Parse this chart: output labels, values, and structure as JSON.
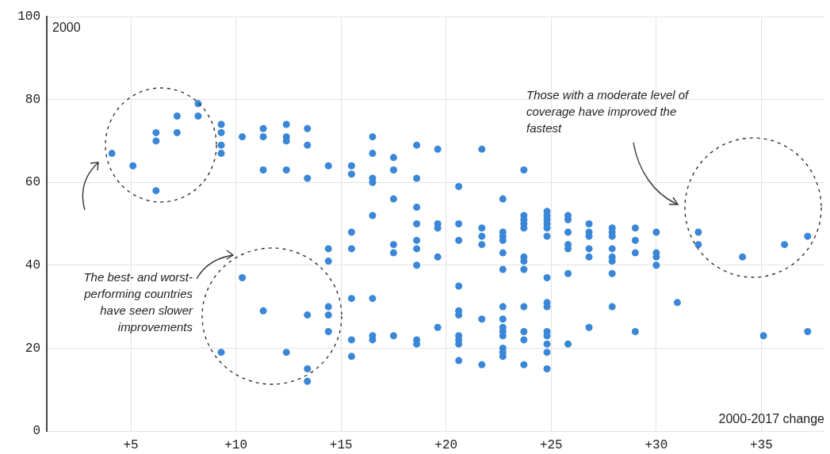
{
  "chart_data": {
    "type": "scatter",
    "xlabel": "2000-2017 change",
    "ylabel": "2000",
    "annotations": [
      "The best- and worst-performing countries have seen slower improvements",
      "Those with a moderate level of coverage have improved the fastest"
    ],
    "series": [
      {
        "color": "#3a87d8",
        "x": [
          4.1,
          5.1,
          6.2,
          6.2,
          6.2,
          7.2,
          7.2,
          8.2,
          8.2,
          9.3,
          9.3,
          9.3,
          9.3,
          9.3,
          10.3,
          10.3,
          11.3,
          11.3,
          11.3,
          11.3,
          12.4,
          12.4,
          12.4,
          12.4,
          12.4,
          13.4,
          13.4,
          13.4,
          13.4,
          13.4,
          13.4,
          14.4,
          14.4,
          14.4,
          14.4,
          14.4,
          14.4,
          15.5,
          15.5,
          15.5,
          15.5,
          15.5,
          15.5,
          15.5,
          16.5,
          16.5,
          16.5,
          16.5,
          16.5,
          16.5,
          16.5,
          16.5,
          17.5,
          17.5,
          17.5,
          17.5,
          17.5,
          17.5,
          18.6,
          18.6,
          18.6,
          18.6,
          18.6,
          18.6,
          18.6,
          18.6,
          18.6,
          19.6,
          19.6,
          19.6,
          19.6,
          19.6,
          20.6,
          20.6,
          20.6,
          20.6,
          20.6,
          20.6,
          20.6,
          20.6,
          20.6,
          20.6,
          21.7,
          21.7,
          21.7,
          21.7,
          21.7,
          21.7,
          22.7,
          22.7,
          22.7,
          22.7,
          22.7,
          22.7,
          22.7,
          22.7,
          22.7,
          22.7,
          22.7,
          22.7,
          22.7,
          22.7,
          23.7,
          23.7,
          23.7,
          23.7,
          23.7,
          23.7,
          23.7,
          23.7,
          23.7,
          23.7,
          23.7,
          23.7,
          24.8,
          24.8,
          24.8,
          24.8,
          24.8,
          24.8,
          24.8,
          24.8,
          24.8,
          24.8,
          24.8,
          24.8,
          24.8,
          24.8,
          25.8,
          25.8,
          25.8,
          25.8,
          25.8,
          25.8,
          25.8,
          26.8,
          26.8,
          26.8,
          26.8,
          26.8,
          26.8,
          27.9,
          27.9,
          27.9,
          27.9,
          27.9,
          27.9,
          27.9,
          27.9,
          29.0,
          29.0,
          29.0,
          29.0,
          30.0,
          30.0,
          30.0,
          30.0,
          31.0,
          32.0,
          32.0,
          34.1,
          35.1,
          36.1,
          37.2,
          37.2
        ],
        "values": [
          67,
          64,
          72,
          70,
          58,
          76,
          72,
          79,
          76,
          74,
          72,
          69,
          67,
          19,
          71,
          37,
          73,
          71,
          63,
          29,
          74,
          71,
          70,
          63,
          19,
          73,
          69,
          61,
          28,
          15,
          12,
          64,
          44,
          41,
          30,
          28,
          24,
          64,
          62,
          48,
          44,
          32,
          22,
          18,
          71,
          67,
          61,
          60,
          52,
          32,
          23,
          22,
          66,
          63,
          56,
          45,
          43,
          23,
          69,
          61,
          54,
          50,
          46,
          44,
          40,
          22,
          21,
          68,
          50,
          49,
          42,
          25,
          59,
          50,
          46,
          35,
          29,
          28,
          23,
          22,
          21,
          17,
          68,
          49,
          47,
          45,
          27,
          16,
          56,
          48,
          47,
          46,
          43,
          39,
          30,
          27,
          25,
          24,
          23,
          20,
          19,
          18,
          63,
          52,
          51,
          50,
          49,
          42,
          41,
          39,
          30,
          24,
          22,
          16,
          53,
          52,
          51,
          50,
          49,
          47,
          37,
          31,
          30,
          24,
          23,
          21,
          19,
          15,
          52,
          51,
          48,
          45,
          44,
          38,
          21,
          50,
          48,
          47,
          44,
          42,
          25,
          49,
          48,
          47,
          44,
          42,
          41,
          38,
          30,
          49,
          46,
          43,
          24,
          48,
          43,
          42,
          40,
          31,
          48,
          45,
          42,
          23,
          45,
          47,
          24
        ]
      }
    ],
    "xlim": [
      1,
      38
    ],
    "xticks": [
      {
        "value": 5,
        "label": "+5"
      },
      {
        "value": 10,
        "label": "+10"
      },
      {
        "value": 15,
        "label": "+15"
      },
      {
        "value": 20,
        "label": "+20"
      },
      {
        "value": 25,
        "label": "+25"
      },
      {
        "value": 30,
        "label": "+30"
      },
      {
        "value": 35,
        "label": "+35"
      }
    ],
    "ylim": [
      0,
      100
    ],
    "yticks": [
      0,
      20,
      40,
      60,
      80,
      100
    ],
    "grid": true,
    "marker": "circle"
  }
}
